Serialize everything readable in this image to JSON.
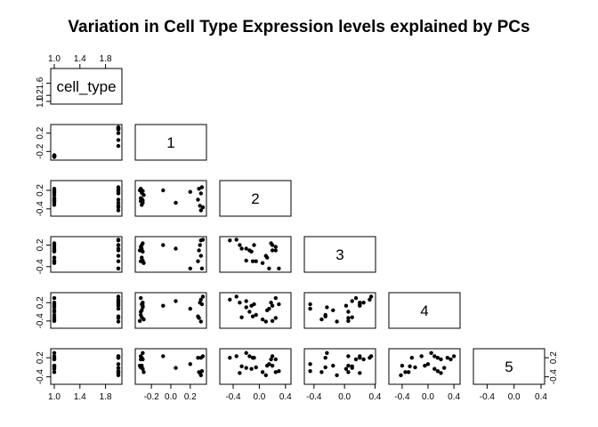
{
  "chart_data": {
    "type": "scatter",
    "subtype": "scatterplot-matrix-lower-triangle",
    "title": "Variation in Cell Type Expression levels explained by PCs",
    "variables": [
      "cell_type",
      "1",
      "2",
      "3",
      "4",
      "5"
    ],
    "ranges": {
      "cell_type": [
        1.0,
        2.0
      ],
      "1": [
        -0.33,
        0.33
      ],
      "2": [
        -0.55,
        0.43
      ],
      "3": [
        -0.48,
        0.36
      ],
      "4": [
        -0.55,
        0.44
      ],
      "5": [
        -0.55,
        0.4
      ]
    },
    "ticks": {
      "cell_type": {
        "values": [
          1.0,
          1.4,
          1.8
        ],
        "labels": [
          "1.0",
          "1.4",
          "1.8"
        ]
      },
      "1": {
        "values": [
          -0.2,
          0.0,
          0.2
        ],
        "labels": [
          "-0.2",
          "0.0",
          "0.2"
        ]
      },
      "2": {
        "values": [
          -0.4,
          0.0,
          0.4
        ],
        "labels": [
          "-0.4",
          "0.0",
          "0.4"
        ]
      },
      "3": {
        "values": [
          -0.4,
          0.0,
          0.4
        ],
        "labels": [
          "-0.4",
          "0.0",
          "0.4"
        ]
      },
      "4": {
        "values": [
          -0.4,
          0.0,
          0.4
        ],
        "labels": [
          "-0.4",
          "0.0",
          "0.4"
        ]
      },
      "cell_type_side": {
        "values": [
          1.0,
          1.2,
          1.6
        ],
        "labels": [
          "1.0",
          "1.2",
          "1.6"
        ]
      },
      "1_side": {
        "values": [
          -0.2,
          0.2
        ],
        "labels": [
          "-0.2",
          "0.2"
        ]
      },
      "2_side": {
        "values": [
          -0.4,
          0.2
        ],
        "labels": [
          "-0.4",
          "0.2"
        ]
      },
      "3_side": {
        "values": [
          -0.4,
          0.2
        ],
        "labels": [
          "-0.4",
          "0.2"
        ]
      },
      "4_side": {
        "values": [
          -0.4,
          0.2
        ],
        "labels": [
          "-0.4",
          "0.2"
        ]
      },
      "5_side": {
        "values": [
          -0.4,
          0.2
        ],
        "labels": [
          "-0.4",
          "0.2"
        ]
      }
    },
    "observations": {
      "cell_type": [
        1,
        1,
        1,
        1,
        1,
        1,
        1,
        1,
        1,
        1,
        1,
        2,
        2,
        2,
        2,
        2,
        2,
        2,
        2,
        2,
        2
      ],
      "1": [
        -0.3,
        -0.29,
        -0.31,
        -0.3,
        -0.28,
        -0.32,
        -0.31,
        -0.29,
        -0.3,
        -0.31,
        -0.29,
        0.33,
        0.31,
        0.3,
        0.32,
        0.29,
        0.31,
        0.28,
        0.2,
        0.05,
        -0.08
      ],
      "2": [
        -0.27,
        -0.2,
        -0.15,
        -0.08,
        0.05,
        0.2,
        0.25,
        0.18,
        0.12,
        -0.05,
        -0.12,
        -0.35,
        -0.45,
        -0.3,
        0.3,
        0.25,
        0.1,
        -0.1,
        0.15,
        -0.2,
        0.2
      ],
      "3": [
        0.1,
        -0.23,
        0.05,
        0.2,
        -0.3,
        0.05,
        0.15,
        0.25,
        -0.15,
        -0.25,
        0.02,
        0.35,
        0.33,
        0.2,
        -0.45,
        0.05,
        -0.1,
        -0.25,
        -0.45,
        0.1,
        0.2
      ],
      "4": [
        -0.28,
        0.05,
        -0.1,
        0.15,
        -0.35,
        -0.4,
        0.35,
        0.2,
        -0.05,
        -0.2,
        0.1,
        0.4,
        0.3,
        0.2,
        0.15,
        -0.3,
        -0.42,
        -0.25,
        0.0,
        0.25,
        0.1
      ],
      "5": [
        -0.07,
        0.35,
        0.25,
        0.2,
        -0.25,
        -0.05,
        0.15,
        0.15,
        -0.05,
        -0.1,
        -0.15,
        0.25,
        0.2,
        -0.28,
        -0.22,
        -0.25,
        -0.35,
        0.2,
        0.0,
        -0.12,
        0.25
      ]
    }
  }
}
